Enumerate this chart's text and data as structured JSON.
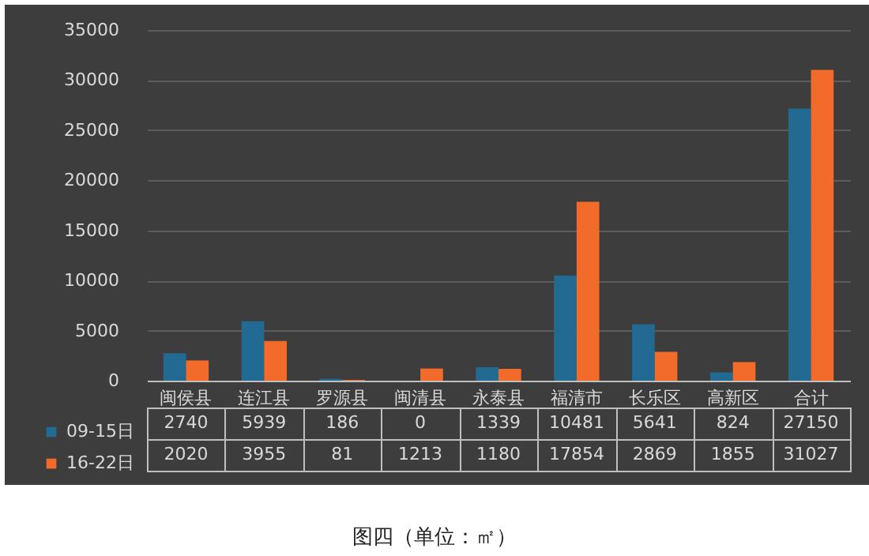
{
  "chart_data": {
    "type": "bar",
    "annotations": [
      "图四（单位：㎡）"
    ],
    "categories": [
      "闽侯县",
      "连江县",
      "罗源县",
      "闽清县",
      "永泰县",
      "福清市",
      "长乐区",
      "高新区",
      "合计"
    ],
    "series": [
      {
        "name": "09-15日",
        "color": "#236a92",
        "values": [
          2740,
          5939,
          186,
          0,
          1339,
          10481,
          5641,
          824,
          27150
        ]
      },
      {
        "name": "16-22日",
        "color": "#f26b2a",
        "values": [
          2020,
          3955,
          81,
          1213,
          1180,
          17854,
          2869,
          1855,
          31027
        ]
      }
    ],
    "ylim": [
      0,
      35000
    ],
    "yticks": [
      0,
      5000,
      10000,
      15000,
      20000,
      25000,
      30000,
      35000
    ],
    "grid": "y",
    "legend": "bottom left",
    "data_labels": true
  }
}
